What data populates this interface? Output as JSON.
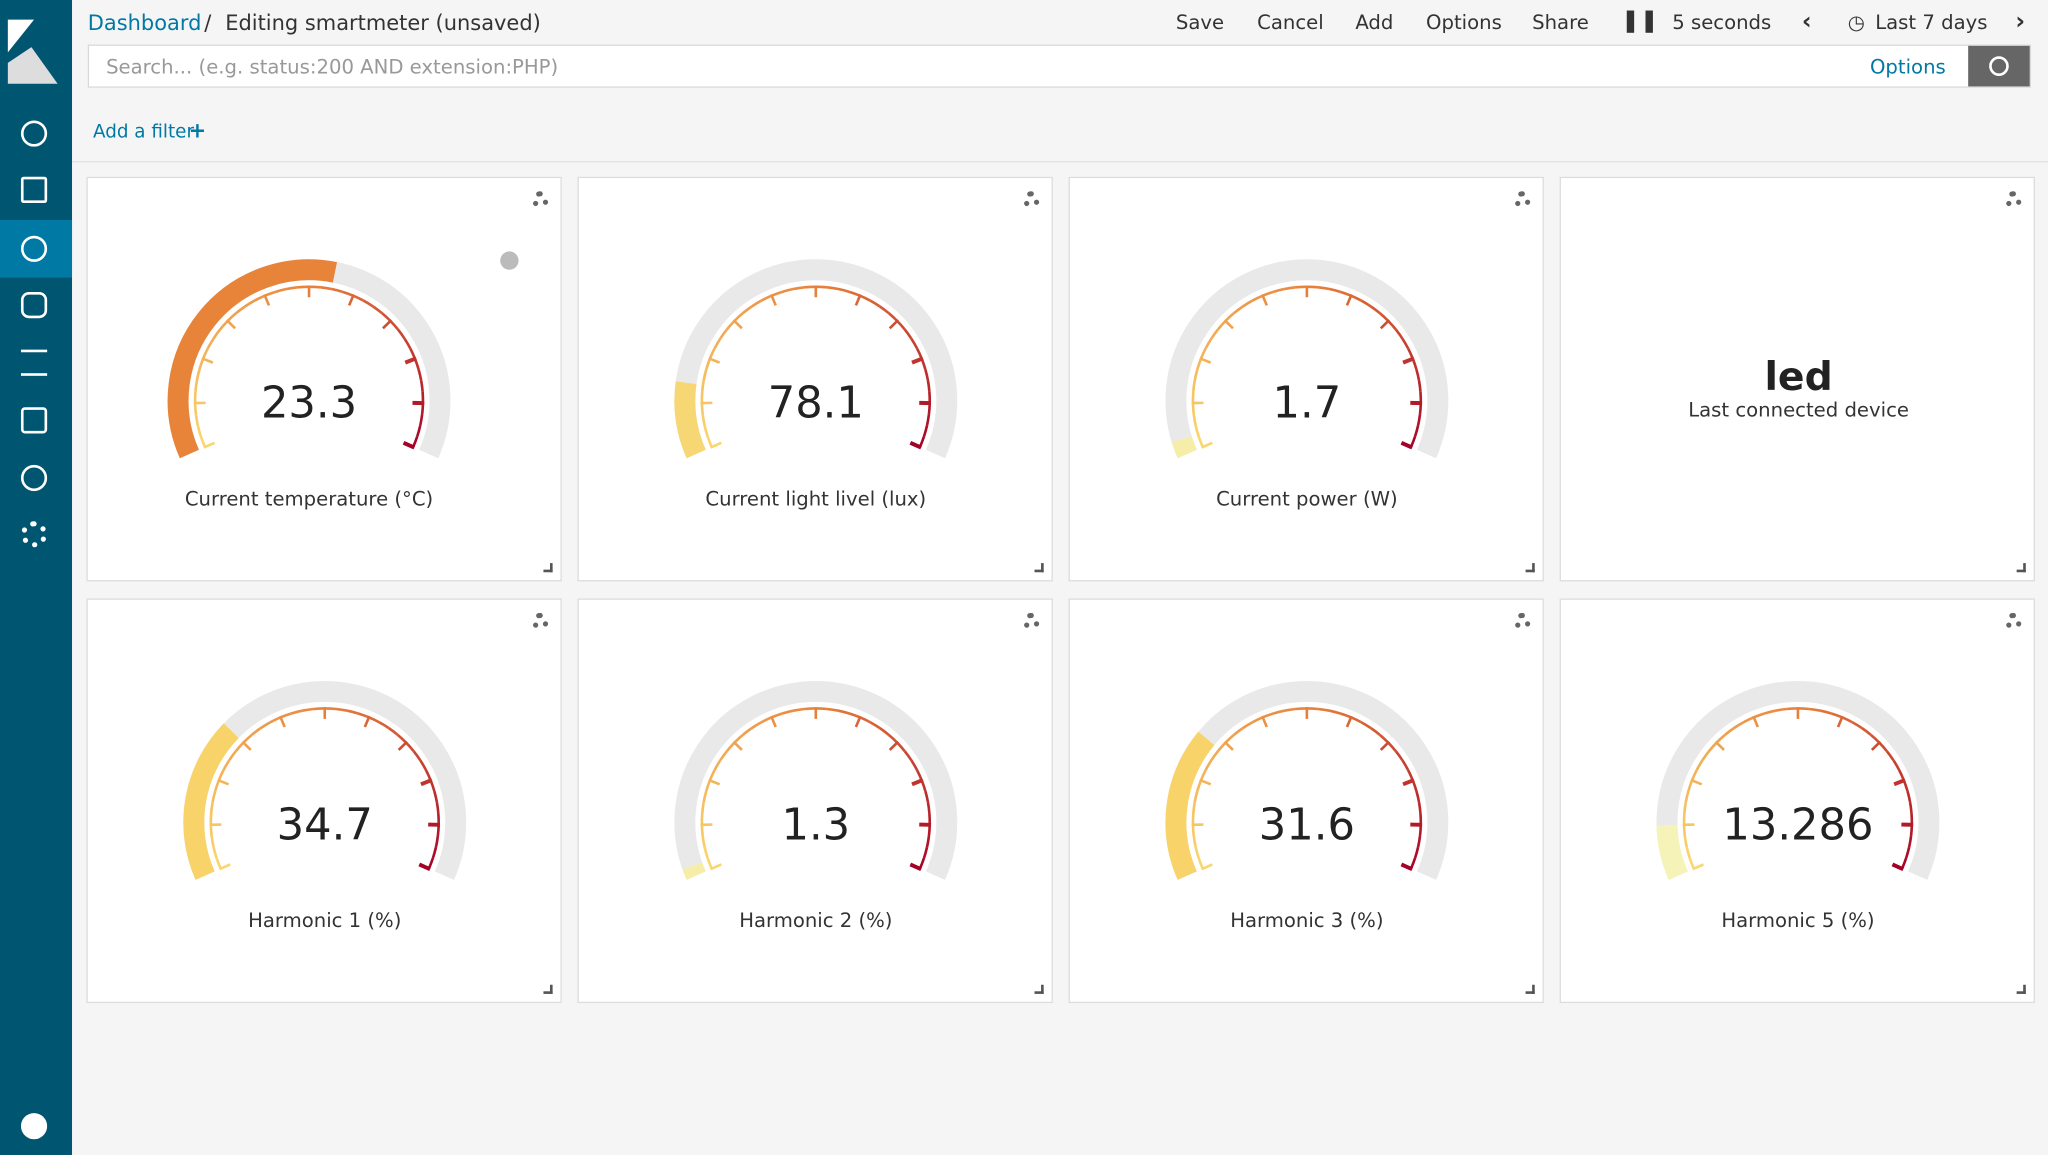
{
  "breadcrumb": {
    "root": "Dashboard",
    "current": "Editing smartmeter (unsaved)"
  },
  "menu": [
    "Save",
    "Cancel",
    "Add",
    "Options",
    "Share"
  ],
  "refresh": "5 seconds",
  "time": "Last 7 days",
  "search": {
    "placeholder": "Search... (e.g. status:200 AND extension:PHP)",
    "options": "Options"
  },
  "filter": "Add a filter",
  "panels": [
    {
      "value": 23.3,
      "label": "Current temperature (°C)"
    },
    {
      "value": 78.1,
      "label": "Current light livel (lux)"
    },
    {
      "value": 1.7,
      "label": "Current power (W)"
    },
    {
      "value": "led",
      "label": "Last connected device"
    },
    {
      "value": 34.7,
      "label": "Harmonic 1 (%)"
    },
    {
      "value": 1.3,
      "label": "Harmonic 2 (%)"
    },
    {
      "value": 31.6,
      "label": "Harmonic 3 (%)"
    },
    {
      "value": 13.286,
      "label": "Harmonic 5 (%)"
    }
  ]
}
